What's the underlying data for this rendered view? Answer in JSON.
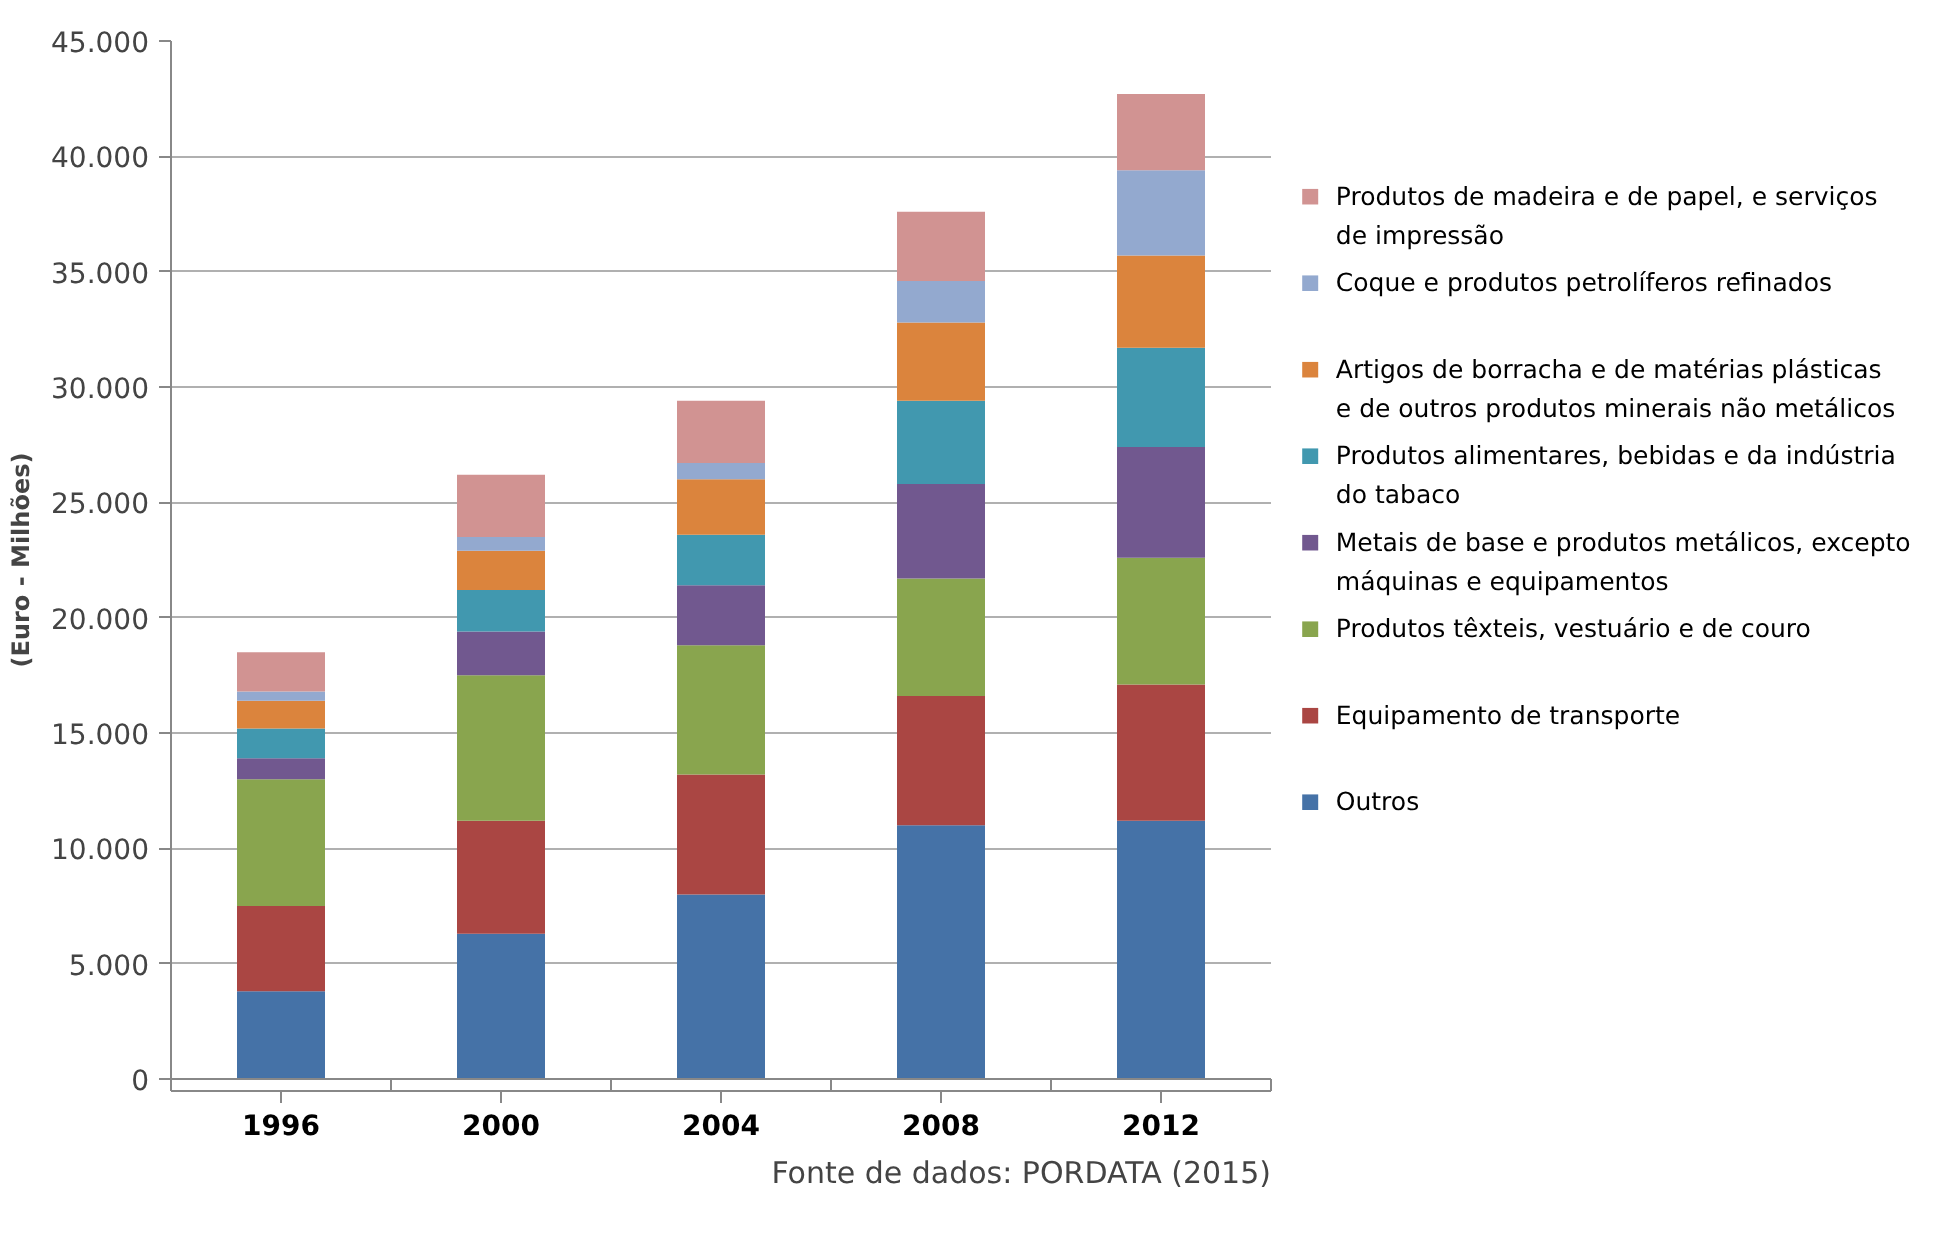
{
  "chart_data": {
    "type": "bar",
    "stacked": true,
    "ylabel": "(Euro - Milhões)",
    "categories": [
      "1996",
      "2000",
      "2004",
      "2008",
      "2012"
    ],
    "ylim": [
      0,
      45000
    ],
    "yticks": [
      {
        "value": 0,
        "label": "0"
      },
      {
        "value": 5000,
        "label": "5.000"
      },
      {
        "value": 10000,
        "label": "10.000"
      },
      {
        "value": 15000,
        "label": "15.000"
      },
      {
        "value": 20000,
        "label": "20.000"
      },
      {
        "value": 25000,
        "label": "25.000"
      },
      {
        "value": 30000,
        "label": "30.000"
      },
      {
        "value": 35000,
        "label": "35.000"
      },
      {
        "value": 40000,
        "label": "40.000"
      },
      {
        "value": 45000,
        "label": "45.000"
      }
    ],
    "grid": "y",
    "legend": "right",
    "series": [
      {
        "name": "Outros",
        "color": "#4572a7",
        "values": [
          3800,
          6300,
          8000,
          11000,
          11200
        ]
      },
      {
        "name": "Equipamento de transporte",
        "color": "#aa4643",
        "values": [
          3700,
          4900,
          5200,
          5600,
          5900
        ]
      },
      {
        "name": "Produtos têxteis, vestuário e de couro",
        "color": "#89a54e",
        "values": [
          5500,
          6300,
          5600,
          5100,
          5500
        ]
      },
      {
        "name": "Metais de base e produtos metálicos, excepto máquinas e equipamentos",
        "color": "#71588f",
        "values": [
          900,
          1900,
          2600,
          4100,
          4800
        ]
      },
      {
        "name": "Produtos alimentares, bebidas e da indústria do tabaco",
        "color": "#4198af",
        "values": [
          1300,
          1800,
          2200,
          3600,
          4300
        ]
      },
      {
        "name": "Artigos de borracha e de matérias plásticas e de outros produtos minerais não metálicos",
        "color": "#db843d",
        "values": [
          1200,
          1700,
          2400,
          3400,
          4000
        ]
      },
      {
        "name": "Coque e produtos petrolíferos refinados",
        "color": "#93a9cf",
        "values": [
          400,
          600,
          700,
          1800,
          3700
        ]
      },
      {
        "name": "Produtos de madeira e de papel, e serviços de impressão",
        "color": "#d19392",
        "values": [
          1700,
          2700,
          2700,
          3000,
          3300
        ]
      }
    ],
    "annotations": [
      "Fonte de dados: PORDATA (2015)"
    ]
  }
}
